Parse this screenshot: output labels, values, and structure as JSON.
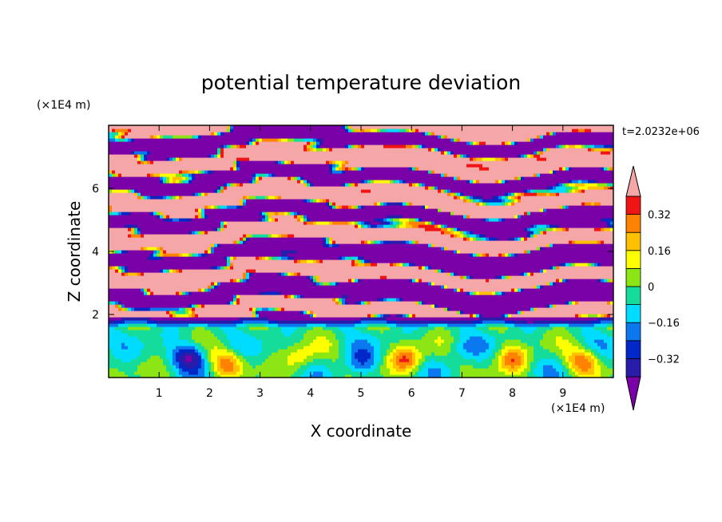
{
  "chart_data": {
    "type": "heatmap",
    "title": "potential temperature deviation",
    "xlabel": "X coordinate",
    "ylabel": "Z coordinate",
    "x_unit_label": "(×1E4 m)",
    "y_unit_label": "(×1E4 m)",
    "annotation": "t=2.0232e+06",
    "xlim": [
      0,
      10
    ],
    "ylim": [
      0,
      8
    ],
    "x_ticks": [
      1,
      2,
      3,
      4,
      5,
      6,
      7,
      8,
      9
    ],
    "y_ticks": [
      2,
      4,
      6
    ],
    "x_tick_labels": [
      "1",
      "2",
      "3",
      "4",
      "5",
      "6",
      "7",
      "8",
      "9"
    ],
    "y_tick_labels": [
      "2",
      "4",
      "6"
    ],
    "colorbar": {
      "levels": [
        -0.4,
        -0.32,
        -0.24,
        -0.16,
        -0.08,
        0,
        0.08,
        0.16,
        0.24,
        0.32,
        0.4
      ],
      "colors": [
        "#7a00a8",
        "#2a1caa",
        "#0028c8",
        "#0c78f0",
        "#00dcff",
        "#14dc9a",
        "#8ce614",
        "#ffff00",
        "#ffc000",
        "#ff8200",
        "#f01414",
        "#f5a6a6"
      ],
      "extend": "both",
      "tick_values": [
        0.32,
        0.16,
        0,
        -0.16,
        -0.32
      ],
      "tick_labels": [
        "0.32",
        "0.16",
        "0",
        "−0.16",
        "−0.32"
      ]
    },
    "layers": [
      {
        "z_from": 6.9,
        "z_to": 8.0,
        "pattern": "alternating purple and pink bands"
      },
      {
        "z_from": 1.9,
        "z_to": 6.9,
        "pattern": "horizontal layered bands alternating -0.4 and 0.4, thin colorful transitions"
      },
      {
        "z_from": 0.0,
        "z_to": 1.9,
        "pattern": "convective cells, values mostly -0.16 to 0.32"
      }
    ],
    "cells": [
      {
        "x": 1.6,
        "z": 0.7,
        "value": -0.35
      },
      {
        "x": 2.35,
        "z": 0.45,
        "value": 0.3
      },
      {
        "x": 3.8,
        "z": 0.6,
        "value": 0.2
      },
      {
        "x": 5.0,
        "z": 0.5,
        "value": -0.2
      },
      {
        "x": 5.9,
        "z": 0.6,
        "value": 0.35
      },
      {
        "x": 7.0,
        "z": 0.9,
        "value": -0.1
      },
      {
        "x": 8.0,
        "z": 0.6,
        "value": 0.3
      },
      {
        "x": 9.4,
        "z": 0.5,
        "value": 0.3
      }
    ]
  }
}
